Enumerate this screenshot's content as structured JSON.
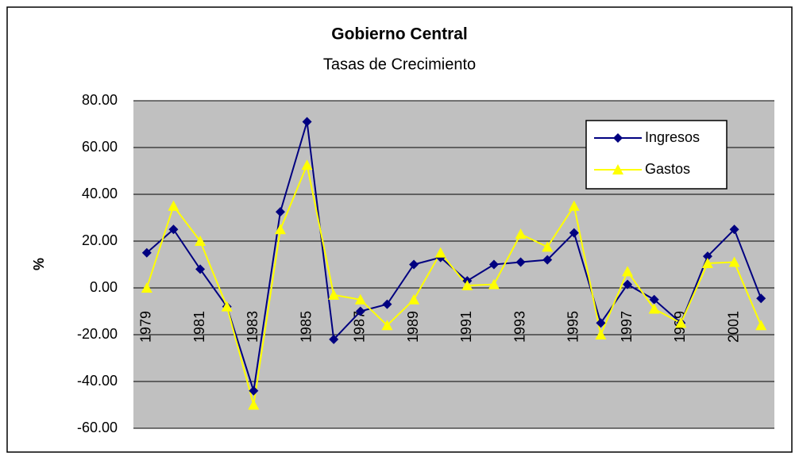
{
  "chart_data": {
    "type": "line",
    "title": "Gobierno Central",
    "subtitle": "Tasas de Crecimiento",
    "y_label": "%",
    "categories": [
      "1979",
      null,
      "1981",
      null,
      "1983",
      null,
      "1985",
      null,
      "1987",
      null,
      "1989",
      null,
      "1991",
      null,
      "1993",
      null,
      "1995",
      null,
      "1997",
      null,
      "1999",
      null,
      "2001",
      null
    ],
    "series": [
      {
        "name": "Ingresos",
        "color": "#000080",
        "marker": "diamond",
        "values": [
          15,
          25,
          8,
          -8,
          -44,
          32.5,
          71,
          -22,
          -10,
          -7,
          10,
          13,
          3,
          10,
          11,
          12,
          23.5,
          -15,
          1.5,
          -5,
          -15,
          13.5,
          25,
          -4.5
        ]
      },
      {
        "name": "Gastos",
        "color": "#ffff00",
        "marker": "triangle",
        "values": [
          0,
          35,
          20,
          -8,
          -50,
          25,
          52.5,
          -3,
          -5,
          -16,
          -5,
          15,
          1,
          1.5,
          23,
          17.5,
          35,
          -20,
          7,
          -9,
          -15,
          10.5,
          11,
          -16
        ]
      }
    ],
    "ylim": [
      -60,
      80
    ],
    "yticks": [
      {
        "value": -60,
        "label": "-60.00"
      },
      {
        "value": -40,
        "label": "-40.00"
      },
      {
        "value": -20,
        "label": "-20.00"
      },
      {
        "value": 0,
        "label": "0.00"
      },
      {
        "value": 20,
        "label": "20.00"
      },
      {
        "value": 40,
        "label": "40.00"
      },
      {
        "value": 60,
        "label": "60.00"
      },
      {
        "value": 80,
        "label": "80.00"
      }
    ],
    "grid": true,
    "legend": "top-right"
  }
}
